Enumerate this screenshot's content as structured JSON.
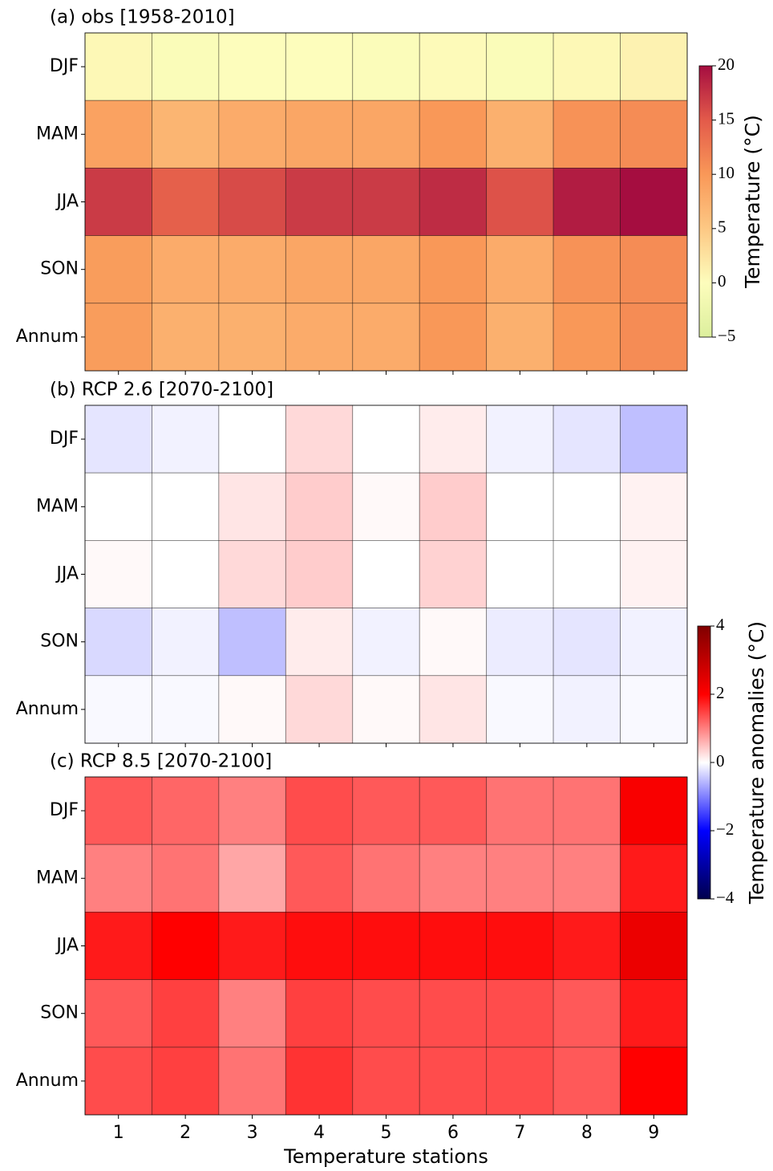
{
  "chart_data": [
    {
      "type": "heatmap",
      "title": "(a) obs [1958-2010]",
      "rows": [
        "DJF",
        "MAM",
        "JJA",
        "SON",
        "Annum"
      ],
      "values": [
        [
          0.5,
          -0.5,
          0,
          0,
          -0.3,
          0.3,
          -0.5,
          0.5,
          1
        ],
        [
          9,
          7,
          8,
          8.5,
          8.5,
          10,
          7.5,
          10.5,
          11
        ],
        [
          17,
          14.5,
          16,
          17,
          17,
          18,
          15.5,
          19,
          20
        ],
        [
          9.5,
          8,
          8,
          8.5,
          8.5,
          10,
          8,
          10.5,
          11
        ],
        [
          9.5,
          7.5,
          7.5,
          8,
          8,
          10,
          7.5,
          10,
          11
        ]
      ],
      "colorbar": {
        "label": "Temperature (°C)",
        "lim": [
          -5,
          20
        ],
        "ticks": [
          {
            "value": -5,
            "label": "−5"
          },
          0,
          5,
          10,
          15,
          20
        ],
        "colors": [
          "#dcef9d",
          "#fdfdbc",
          "#fdc884",
          "#f99858",
          "#e35a4a",
          "#a50d40"
        ]
      }
    },
    {
      "type": "heatmap",
      "title": "(b) RCP 2.6 [2070-2100]",
      "rows": [
        "DJF",
        "MAM",
        "JJA",
        "SON",
        "Annum"
      ],
      "values": [
        [
          -0.2,
          -0.1,
          0,
          0.3,
          0,
          0.15,
          -0.1,
          -0.2,
          -0.5
        ],
        [
          0,
          0,
          0.2,
          0.4,
          0.05,
          0.4,
          0,
          0,
          0.1
        ],
        [
          0.05,
          0,
          0.3,
          0.4,
          0,
          0.35,
          0,
          0,
          0.1
        ],
        [
          -0.3,
          -0.1,
          -0.5,
          0.15,
          -0.1,
          0.05,
          -0.15,
          -0.2,
          -0.1
        ],
        [
          -0.05,
          -0.05,
          0.05,
          0.3,
          0.05,
          0.2,
          -0.05,
          -0.1,
          -0.05
        ]
      ],
      "colorbar": {
        "label": "Temperature anomalies (°C)",
        "lim": [
          -4,
          4
        ],
        "ticks": [
          {
            "value": -4,
            "label": "−4"
          },
          {
            "value": -2,
            "label": "−2"
          },
          0,
          2,
          4
        ],
        "colors": [
          "#00004d",
          "#0000ff",
          "#ffffff",
          "#ff0000",
          "#800000"
        ]
      }
    },
    {
      "type": "heatmap",
      "title": "(c) RCP 8.5 [2070-2100]",
      "rows": [
        "DJF",
        "MAM",
        "JJA",
        "SON",
        "Annum"
      ],
      "columns": [
        "1",
        "2",
        "3",
        "4",
        "5",
        "6",
        "7",
        "8",
        "9"
      ],
      "xlabel": "Temperature stations",
      "values": [
        [
          1.3,
          1.2,
          1.0,
          1.4,
          1.3,
          1.3,
          1.1,
          1.1,
          2.1
        ],
        [
          1.0,
          1.1,
          0.7,
          1.3,
          1.1,
          1.0,
          1.0,
          1.0,
          1.8
        ],
        [
          1.8,
          2.0,
          1.8,
          1.9,
          1.9,
          1.9,
          1.9,
          1.8,
          2.3
        ],
        [
          1.3,
          1.5,
          1.0,
          1.5,
          1.4,
          1.4,
          1.4,
          1.3,
          1.8
        ],
        [
          1.4,
          1.5,
          1.1,
          1.6,
          1.4,
          1.4,
          1.4,
          1.3,
          2.0
        ]
      ]
    }
  ]
}
